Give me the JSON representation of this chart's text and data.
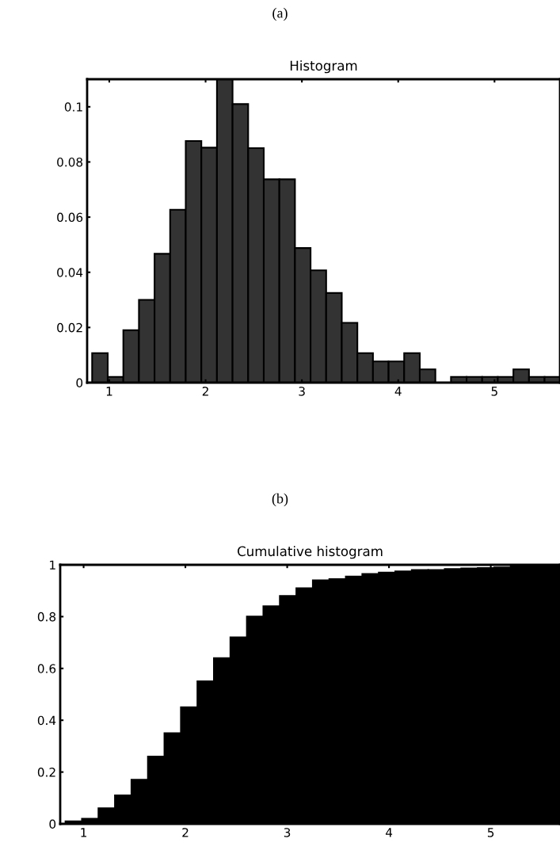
{
  "chart_data": [
    {
      "type": "histogram",
      "title": "Histogram",
      "annotations": [
        "(a)"
      ],
      "bins": [
        0.822,
        0.984,
        1.146,
        1.308,
        1.47,
        1.632,
        1.794,
        1.956,
        2.118,
        2.28,
        2.442,
        2.604,
        2.766,
        2.928,
        3.09,
        3.252,
        3.414,
        3.576,
        3.738,
        3.9,
        4.062,
        4.224,
        4.386,
        4.548,
        4.71,
        4.872,
        5.034,
        5.196,
        5.358,
        5.52,
        5.682
      ],
      "values": [
        0.0107,
        0.0021,
        0.019,
        0.03,
        0.0467,
        0.0627,
        0.0876,
        0.0852,
        0.11,
        0.101,
        0.085,
        0.0737,
        0.0737,
        0.0488,
        0.0407,
        0.0325,
        0.0217,
        0.0107,
        0.0077,
        0.0077,
        0.0107,
        0.0048,
        0,
        0.0021,
        0.0021,
        0.0021,
        0.0021,
        0.0048,
        0.0021,
        0.0021
      ],
      "color": "#333333",
      "xlim": [
        0.77,
        5.68
      ],
      "xticks": [
        1,
        2,
        3,
        4,
        5
      ],
      "ylim": [
        0,
        0.11
      ],
      "yticks": [
        0,
        0.02,
        0.04,
        0.06,
        0.08,
        0.1
      ],
      "grid": false
    },
    {
      "type": "histogram",
      "title": "Cumulative histogram",
      "annotations": [
        "(b)"
      ],
      "bins": [
        0.822,
        0.984,
        1.146,
        1.308,
        1.47,
        1.632,
        1.794,
        1.956,
        2.118,
        2.28,
        2.442,
        2.604,
        2.766,
        2.928,
        3.09,
        3.252,
        3.414,
        3.576,
        3.738,
        3.9,
        4.062,
        4.224,
        4.386,
        4.548,
        4.71,
        4.872,
        5.034,
        5.196,
        5.358,
        5.52,
        5.682
      ],
      "values": [
        0.01,
        0.02,
        0.06,
        0.11,
        0.17,
        0.26,
        0.35,
        0.45,
        0.55,
        0.64,
        0.72,
        0.8,
        0.84,
        0.88,
        0.91,
        0.94,
        0.945,
        0.955,
        0.965,
        0.97,
        0.975,
        0.98,
        0.98,
        0.984,
        0.986,
        0.988,
        0.99,
        0.996,
        1,
        1
      ],
      "color": "#000000",
      "xlim": [
        0.77,
        5.68
      ],
      "xticks": [
        1,
        2,
        3,
        4,
        5
      ],
      "ylim": [
        0,
        1
      ],
      "yticks": [
        0,
        0.2,
        0.4,
        0.6,
        0.8,
        1
      ],
      "grid": false
    }
  ]
}
